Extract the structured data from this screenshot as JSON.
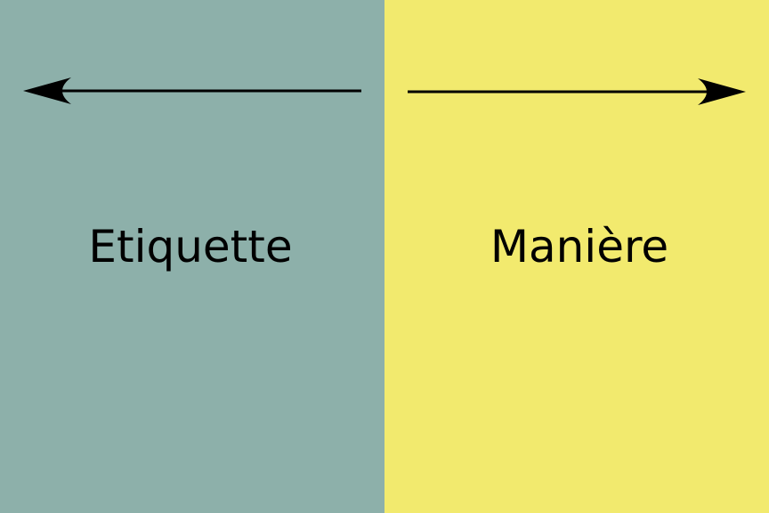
{
  "panels": {
    "left": {
      "label": "Etiquette",
      "color": "#8db0aa",
      "arrow_direction": "left",
      "arrow_icon": "arrow-left-icon"
    },
    "right": {
      "label": "Manière",
      "color": "#f2ea6e",
      "arrow_direction": "right",
      "arrow_icon": "arrow-right-icon"
    }
  },
  "arrow_color": "#000000",
  "text_color": "#000000"
}
